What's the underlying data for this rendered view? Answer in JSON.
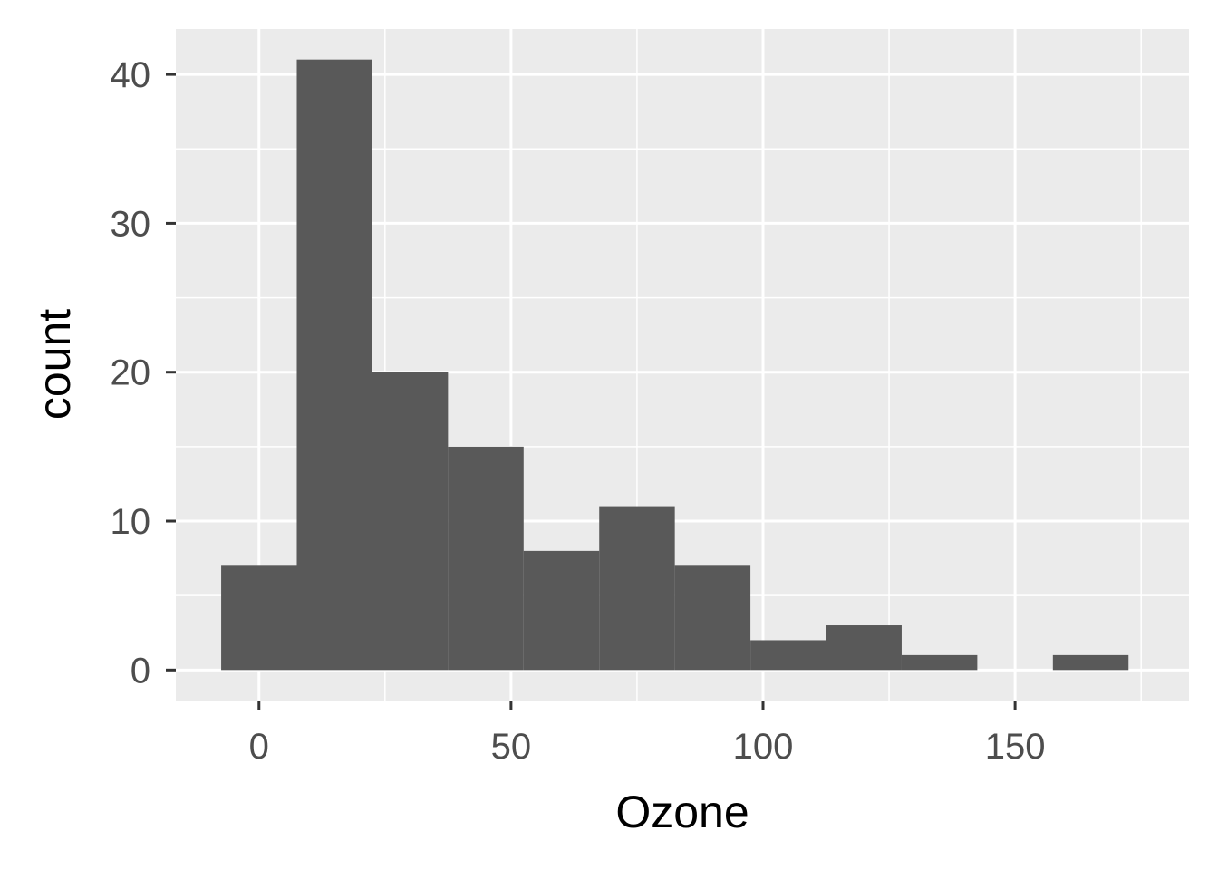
{
  "chart_data": {
    "type": "bar",
    "title": "",
    "xlabel": "Ozone",
    "ylabel": "count",
    "bin_width": 15,
    "bins": [
      {
        "x0": -7.5,
        "x1": 7.5,
        "count": 7
      },
      {
        "x0": 7.5,
        "x1": 22.5,
        "count": 41
      },
      {
        "x0": 22.5,
        "x1": 37.5,
        "count": 20
      },
      {
        "x0": 37.5,
        "x1": 52.5,
        "count": 15
      },
      {
        "x0": 52.5,
        "x1": 67.5,
        "count": 8
      },
      {
        "x0": 67.5,
        "x1": 82.5,
        "count": 11
      },
      {
        "x0": 82.5,
        "x1": 97.5,
        "count": 7
      },
      {
        "x0": 97.5,
        "x1": 112.5,
        "count": 2
      },
      {
        "x0": 112.5,
        "x1": 127.5,
        "count": 3
      },
      {
        "x0": 127.5,
        "x1": 142.5,
        "count": 1
      },
      {
        "x0": 142.5,
        "x1": 157.5,
        "count": 0
      },
      {
        "x0": 157.5,
        "x1": 172.5,
        "count": 1
      }
    ],
    "xlim": [
      -16.5,
      184.5
    ],
    "ylim": [
      -2.05,
      43.05
    ],
    "x_ticks": [
      0,
      50,
      100,
      150
    ],
    "x_tick_labels": [
      "0",
      "50",
      "100",
      "150"
    ],
    "y_ticks": [
      0,
      10,
      20,
      30,
      40
    ],
    "y_tick_labels": [
      "0",
      "10",
      "20",
      "30",
      "40"
    ],
    "grid": true,
    "colors": {
      "bar_fill": "#595959",
      "panel_background": "#ebebeb",
      "grid": "#ffffff",
      "tick_label": "#4d4d4d",
      "tick_mark": "#333333"
    }
  }
}
